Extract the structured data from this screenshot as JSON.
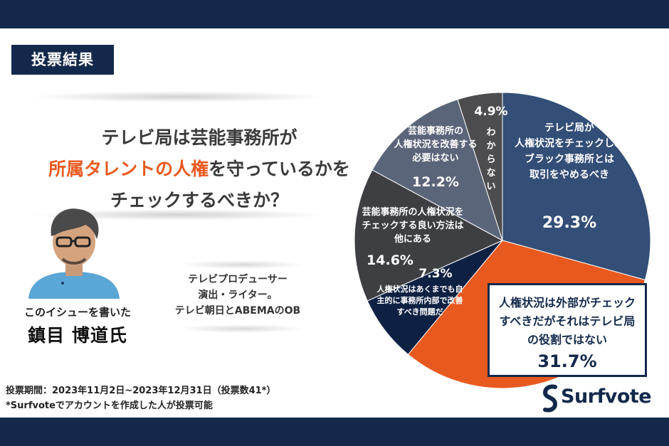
{
  "header": {
    "badge": "投票結果"
  },
  "question": {
    "line1": "テレビ局は芸能事務所が",
    "line2_highlight": "所属タレントの人権",
    "line2_rest": "を守っているかを",
    "line3": "チェックするべきか？"
  },
  "author": {
    "caption": "このイシューを書いた",
    "name": "鎮目 博道氏",
    "profile_lines": [
      "テレビプロデューサー",
      "演出・ライター。",
      "テレビ朝日とABEMAのOB"
    ]
  },
  "footer": {
    "period": "投票期間：2023年11月2日~2023年12月31日（投票数41*）",
    "note": "*Surfvoteでアカウントを作成した人が投票可能"
  },
  "brand": {
    "name": "Surfvote"
  },
  "colors": {
    "navy": "#13294b",
    "slice_blue": "#334e77",
    "slice_orange": "#e8591f",
    "slice_darknavy": "#0f2143",
    "slice_darkgray": "#3d3f43",
    "slice_slate": "#5b6579",
    "slice_gray": "#4d4d4f"
  },
  "chart_data": {
    "type": "pie",
    "title": "テレビ局は芸能事務所が所属タレントの人権を守っているかをチェックするべきか？",
    "slices": [
      {
        "label_lines": [
          "テレビ局が",
          "人権状況をチェックし、",
          "ブラック事務所とは",
          "取引をやめるべき"
        ],
        "value": 29.3,
        "value_label": "29.3%",
        "color": "#334e77"
      },
      {
        "label_lines": [
          "人権状況は外部がチェック",
          "すべきだがそれはテレビ局",
          "の役割ではない"
        ],
        "value": 31.7,
        "value_label": "31.7%",
        "color": "#e8591f"
      },
      {
        "label_lines": [
          "人権状況はあくまでも自",
          "主的に事務所内部で改善",
          "すべき問題だ"
        ],
        "value": 7.3,
        "value_label": "7.3%",
        "color": "#0f2143"
      },
      {
        "label_lines": [
          "芸能事務所の人権状況を",
          "チェックする良い方法は",
          "他にある"
        ],
        "value": 14.6,
        "value_label": "14.6%",
        "color": "#3d3f43"
      },
      {
        "label_lines": [
          "芸能事務所の",
          "人権状況を改善する",
          "必要はない"
        ],
        "value": 12.2,
        "value_label": "12.2%",
        "color": "#5b6579"
      },
      {
        "label_lines": [
          "わ",
          "か",
          "ら",
          "な",
          "い"
        ],
        "value": 4.9,
        "value_label": "4.9%",
        "color": "#4d4d4f"
      }
    ]
  }
}
